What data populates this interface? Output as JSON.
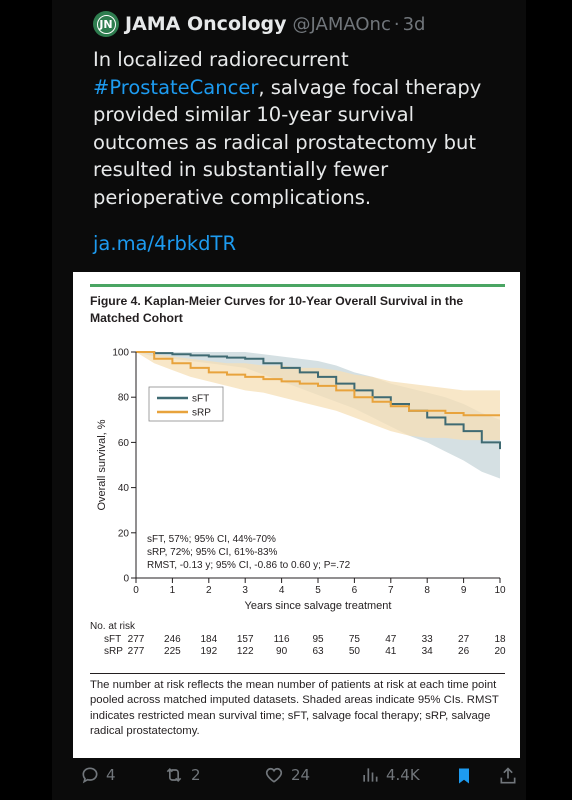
{
  "tweet": {
    "display_name": "JAMA Oncology",
    "handle": "@JAMAOnc",
    "separator": "·",
    "age": "3d",
    "avatar_text": "JN",
    "text_before": "In localized radiorecurrent ",
    "hashtag": "#ProstateCancer",
    "text_after": ", salvage focal therapy provided similar 10-year survival outcomes as radical prostatectomy but resulted in substantially fewer perioperative complications.",
    "link": "ja.ma/4rbkdTR"
  },
  "figure": {
    "title": "Figure 4. Kaplan-Meier Curves for 10-Year Overall Survival in the Matched Cohort",
    "caption": "The number at risk reflects the mean number of patients at risk at each time point pooled across matched imputed datasets. Shaded areas indicate 95% CIs. RMST indicates restricted mean survival time; sFT, salvage focal therapy; sRP, salvage radical prostatectomy.",
    "annotations": [
      "sFT, 57%; 95% CI, 44%-70%",
      "sRP, 72%; 95% CI, 61%-83%",
      "RMST, -0.13 y; 95% CI, -0.86 to 0.60 y; P=.72"
    ],
    "risk_table": {
      "heading": "No. at risk",
      "rows": [
        {
          "label": "sFT",
          "values": [
            "277",
            "246",
            "184",
            "157",
            "116",
            "95",
            "75",
            "47",
            "33",
            "27",
            "18"
          ]
        },
        {
          "label": "sRP",
          "values": [
            "277",
            "225",
            "192",
            "122",
            "90",
            "63",
            "50",
            "41",
            "34",
            "26",
            "20"
          ]
        }
      ]
    }
  },
  "chart_data": {
    "type": "line",
    "title": "",
    "xlabel": "Years since salvage treatment",
    "ylabel": "Overall survival, %",
    "xlim": [
      0,
      10
    ],
    "ylim": [
      0,
      100
    ],
    "xticks": [
      "0",
      "1",
      "2",
      "3",
      "4",
      "5",
      "6",
      "7",
      "8",
      "9",
      "10"
    ],
    "yticks": [
      "0",
      "20",
      "40",
      "60",
      "80",
      "100"
    ],
    "legend_position": "upper-left",
    "grid": false,
    "series": [
      {
        "name": "sFT",
        "color": "#3f6a72",
        "band_color": "#c7d6da",
        "x": [
          0,
          0.5,
          1,
          1.5,
          2,
          2.5,
          3,
          3.5,
          4,
          4.5,
          5,
          5.5,
          6,
          6.5,
          7,
          7.5,
          8,
          8.5,
          9,
          9.5,
          10
        ],
        "y": [
          100,
          99.5,
          99,
          98.5,
          98,
          97.5,
          97,
          95,
          93,
          91,
          89,
          86,
          83,
          80,
          77,
          74,
          71,
          68,
          65,
          60,
          57
        ],
        "ci_low": [
          100,
          98,
          97,
          96,
          95,
          94,
          93,
          90,
          87,
          84,
          81,
          78,
          75,
          71,
          67,
          63,
          60,
          56,
          52,
          47,
          44
        ],
        "ci_high": [
          100,
          100,
          100,
          100,
          100,
          100,
          100,
          99,
          98,
          97,
          96,
          94,
          91,
          89,
          86,
          84,
          82,
          80,
          77,
          73,
          70
        ]
      },
      {
        "name": "sRP",
        "color": "#e8a33c",
        "band_color": "#f6dfb6",
        "x": [
          0,
          0.5,
          1,
          1.5,
          2,
          2.5,
          3,
          3.5,
          4,
          4.5,
          5,
          5.5,
          6,
          6.5,
          7,
          7.5,
          8,
          8.5,
          9,
          9.5,
          10
        ],
        "y": [
          100,
          97,
          95,
          93,
          91,
          90,
          89,
          88,
          87,
          86,
          85,
          83,
          80,
          78,
          76,
          74,
          74,
          73,
          72,
          72,
          72
        ],
        "ci_low": [
          100,
          95,
          92,
          89,
          87,
          85,
          83,
          82,
          80,
          78,
          76,
          74,
          71,
          68,
          65,
          63,
          62,
          62,
          61,
          61,
          61
        ],
        "ci_high": [
          100,
          99,
          98,
          97,
          96,
          95,
          95,
          94,
          94,
          93,
          93,
          92,
          90,
          89,
          87,
          86,
          85,
          84,
          83,
          83,
          83
        ]
      }
    ]
  },
  "actions": {
    "replies": "4",
    "reposts": "2",
    "likes": "24",
    "views": "4.4K"
  },
  "colors": {
    "accent": "#1d9bf0",
    "muted": "#71767b",
    "figure_rule": "#4aa563"
  }
}
